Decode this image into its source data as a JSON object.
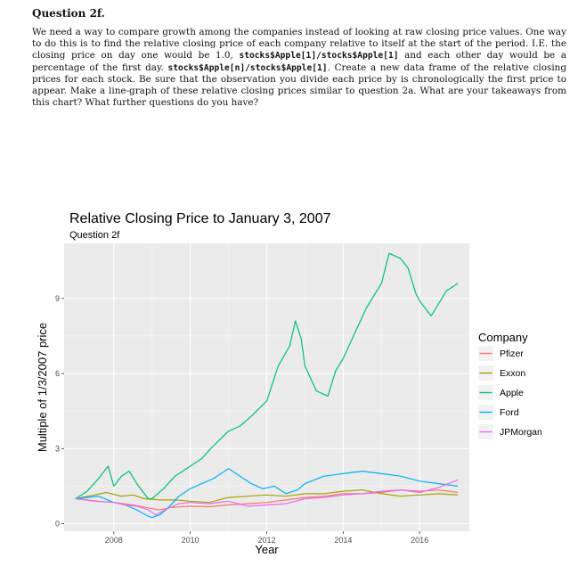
{
  "question": {
    "title": "Question 2f.",
    "body_parts": [
      "We need a way to compare growth among the companies instead of looking at raw closing price values. One way to do this is to find the relative closing price of each company relative to itself at the start of the period. I.E. the closing price on day one would be 1.0, ",
      "stocks$Apple[1]/stocks$Apple[1]",
      " and each other day would be a percentage of the first day. ",
      "stocks$Apple[n]/stocks$Apple[1]",
      ". Create a new data frame of the relative closing prices for each stock. Be sure that the observation you divide each price by is chronologically the first price to appear. Make a line-graph of these relative closing prices similar to question 2a. What are your takeaways from this chart? What further questions do you have?"
    ]
  },
  "chart_data": {
    "type": "line",
    "title": "Relative Closing Price to January 3, 2007",
    "subtitle": "Question 2f",
    "xlabel": "Year",
    "ylabel": "Multiple of 1/3/2007 price",
    "xlim": [
      2006.7,
      2017.3
    ],
    "ylim": [
      -0.3,
      11.2
    ],
    "xticks": [
      2008,
      2010,
      2012,
      2014,
      2016
    ],
    "yticks": [
      0,
      3,
      6,
      9
    ],
    "grid": true,
    "legend_title": "Company",
    "legend_position": "right",
    "panel_color": "#ebebeb",
    "series": [
      {
        "name": "Pfizer",
        "color": "#F8766D",
        "x": [
          2007.0,
          2007.5,
          2008.0,
          2008.5,
          2009.0,
          2009.2,
          2009.5,
          2010.0,
          2010.5,
          2011.0,
          2011.5,
          2012.0,
          2012.5,
          2013.0,
          2013.5,
          2014.0,
          2014.5,
          2015.0,
          2015.5,
          2016.0,
          2016.5,
          2017.0
        ],
        "y": [
          1.0,
          0.9,
          0.85,
          0.75,
          0.6,
          0.55,
          0.65,
          0.7,
          0.68,
          0.75,
          0.8,
          0.85,
          0.95,
          1.05,
          1.1,
          1.2,
          1.2,
          1.25,
          1.35,
          1.3,
          1.35,
          1.25
        ]
      },
      {
        "name": "Exxon",
        "color": "#A3A500",
        "x": [
          2007.0,
          2007.5,
          2007.8,
          2008.2,
          2008.5,
          2008.8,
          2009.2,
          2009.6,
          2010.0,
          2010.5,
          2011.0,
          2011.5,
          2012.0,
          2012.5,
          2013.0,
          2013.5,
          2014.0,
          2014.5,
          2015.0,
          2015.5,
          2016.0,
          2016.5,
          2017.0
        ],
        "y": [
          1.0,
          1.15,
          1.25,
          1.1,
          1.15,
          1.0,
          0.95,
          0.95,
          0.9,
          0.85,
          1.05,
          1.1,
          1.15,
          1.1,
          1.2,
          1.2,
          1.3,
          1.35,
          1.2,
          1.1,
          1.15,
          1.2,
          1.15
        ]
      },
      {
        "name": "Apple",
        "color": "#00BF7D",
        "x": [
          2007.0,
          2007.3,
          2007.6,
          2007.85,
          2008.0,
          2008.2,
          2008.4,
          2008.6,
          2008.9,
          2009.0,
          2009.3,
          2009.6,
          2010.0,
          2010.3,
          2010.6,
          2011.0,
          2011.3,
          2011.6,
          2012.0,
          2012.3,
          2012.6,
          2012.75,
          2012.9,
          2013.0,
          2013.3,
          2013.6,
          2013.8,
          2014.0,
          2014.3,
          2014.6,
          2015.0,
          2015.2,
          2015.5,
          2015.7,
          2015.9,
          2016.0,
          2016.3,
          2016.5,
          2016.7,
          2017.0
        ],
        "y": [
          1.0,
          1.3,
          1.8,
          2.3,
          1.5,
          1.9,
          2.1,
          1.6,
          1.0,
          1.0,
          1.4,
          1.9,
          2.3,
          2.6,
          3.1,
          3.7,
          3.9,
          4.3,
          4.9,
          6.3,
          7.1,
          8.1,
          7.4,
          6.3,
          5.3,
          5.1,
          6.1,
          6.6,
          7.6,
          8.6,
          9.6,
          10.8,
          10.6,
          10.2,
          9.2,
          8.9,
          8.3,
          8.8,
          9.3,
          9.6
        ]
      },
      {
        "name": "Ford",
        "color": "#00B0F6",
        "x": [
          2007.0,
          2007.3,
          2007.6,
          2008.0,
          2008.3,
          2008.6,
          2008.9,
          2009.0,
          2009.2,
          2009.4,
          2009.7,
          2010.0,
          2010.3,
          2010.6,
          2011.0,
          2011.3,
          2011.6,
          2011.9,
          2012.2,
          2012.5,
          2012.8,
          2013.0,
          2013.5,
          2014.0,
          2014.5,
          2015.0,
          2015.5,
          2016.0,
          2016.5,
          2017.0
        ],
        "y": [
          1.0,
          1.05,
          1.1,
          0.85,
          0.75,
          0.55,
          0.3,
          0.25,
          0.35,
          0.6,
          1.1,
          1.4,
          1.6,
          1.8,
          2.2,
          1.9,
          1.6,
          1.4,
          1.5,
          1.2,
          1.35,
          1.6,
          1.9,
          2.0,
          2.1,
          2.0,
          1.9,
          1.7,
          1.6,
          1.5
        ]
      },
      {
        "name": "JPMorgan",
        "color": "#E76BF3",
        "x": [
          2007.0,
          2007.3,
          2007.6,
          2008.0,
          2008.3,
          2008.6,
          2008.9,
          2009.1,
          2009.4,
          2009.7,
          2010.0,
          2010.5,
          2011.0,
          2011.5,
          2012.0,
          2012.5,
          2013.0,
          2013.5,
          2014.0,
          2014.5,
          2015.0,
          2015.5,
          2016.0,
          2016.5,
          2017.0
        ],
        "y": [
          1.0,
          0.95,
          0.9,
          0.85,
          0.75,
          0.7,
          0.55,
          0.35,
          0.6,
          0.8,
          0.85,
          0.8,
          0.9,
          0.7,
          0.75,
          0.8,
          1.0,
          1.05,
          1.15,
          1.2,
          1.3,
          1.35,
          1.25,
          1.45,
          1.75
        ]
      }
    ]
  }
}
